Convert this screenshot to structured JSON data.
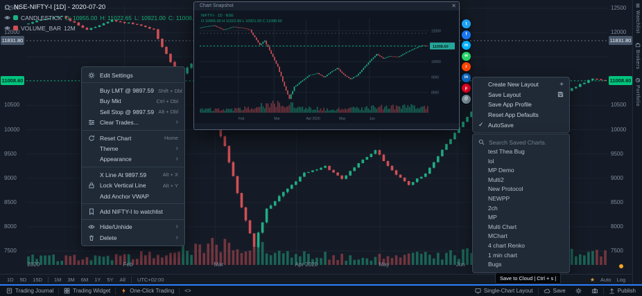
{
  "header": {
    "title": "NSE-NIFTY-I [1D] - 2020-07-20",
    "series_label": "CANDLESTICK",
    "o": "O: 10955.00",
    "h": "H: 11022.65",
    "l": "L: 10921.00",
    "c": "C: 11008.6",
    "volume_label": "VOLUME_BAR",
    "volume_value": "12M"
  },
  "price_axis": {
    "ticks": [
      12500,
      12000,
      10500,
      10000,
      9500,
      9000,
      8500,
      8000,
      7500
    ],
    "level_badge": "11831.80",
    "price_badge": "11008.60"
  },
  "x_axis": {
    "labels": [
      {
        "text": "2020",
        "pos": 0.004
      },
      {
        "text": "Feb",
        "pos": 0.169
      },
      {
        "text": "Mar",
        "pos": 0.325
      },
      {
        "text": "Apr 2020",
        "pos": 0.465
      },
      {
        "text": "May",
        "pos": 0.609
      },
      {
        "text": "Jun",
        "pos": 0.742
      }
    ]
  },
  "chart_data": {
    "type": "candlestick",
    "symbol": "NSE-NIFTY-I",
    "interval": "1D",
    "price_range": [
      7500,
      12500
    ],
    "last_price": 11008.6,
    "level_line": 11831.8,
    "n_candles": 139,
    "close_anchors": [
      [
        0,
        12200
      ],
      [
        8,
        12350
      ],
      [
        14,
        12050
      ],
      [
        20,
        12250
      ],
      [
        27,
        12150
      ],
      [
        30,
        12050
      ],
      [
        33,
        11550
      ],
      [
        36,
        11100
      ],
      [
        39,
        11350
      ],
      [
        43,
        10500
      ],
      [
        47,
        9650
      ],
      [
        51,
        8400
      ],
      [
        54,
        7610
      ],
      [
        57,
        8350
      ],
      [
        61,
        8700
      ],
      [
        66,
        9100
      ],
      [
        71,
        9250
      ],
      [
        75,
        8980
      ],
      [
        79,
        9300
      ],
      [
        83,
        9580
      ],
      [
        87,
        9150
      ],
      [
        91,
        8870
      ],
      [
        95,
        9100
      ],
      [
        99,
        9580
      ],
      [
        103,
        10050
      ],
      [
        107,
        10480
      ],
      [
        111,
        10200
      ],
      [
        115,
        10350
      ],
      [
        120,
        10300
      ],
      [
        125,
        10600
      ],
      [
        130,
        10850
      ],
      [
        135,
        11050
      ],
      [
        138,
        11008
      ]
    ]
  },
  "context_menu": {
    "items": [
      {
        "label": "Edit Settings",
        "shortcut": ""
      },
      {
        "label": "Buy LMT @ 9897.59",
        "shortcut": "Shift + Dbl"
      },
      {
        "label": "Buy Mkt",
        "shortcut": "Ctrl + Dbl"
      },
      {
        "label": "Sell Stop @ 9897.59",
        "shortcut": "Alt + Dbl"
      },
      {
        "label": "Clear Trades...",
        "shortcut": ""
      },
      {
        "label": "Reset Chart",
        "shortcut": "Home"
      },
      {
        "label": "Theme",
        "shortcut": ""
      },
      {
        "label": "Appearance",
        "shortcut": ""
      },
      {
        "label": "X Line At 9897.59",
        "shortcut": "Alt + X"
      },
      {
        "label": "Lock Vertical Line",
        "shortcut": "Alt + Y"
      },
      {
        "label": "Add Anchor VWAP",
        "shortcut": ""
      },
      {
        "label": "Add NIFTY-I to watchlist",
        "shortcut": ""
      },
      {
        "label": "Hide/Unhide",
        "shortcut": ""
      },
      {
        "label": "Delete",
        "shortcut": ""
      }
    ]
  },
  "layout_menu": {
    "items": [
      "Create New Layout",
      "Save Layout",
      "Save App Profile",
      "Reset App Defaults",
      "AutoSave"
    ]
  },
  "saved_charts": {
    "search_placeholder": "Search Saved Charts.",
    "items": [
      "test Thea Bug",
      "lol",
      "MP Demo",
      "Multi2",
      "New Protocol",
      "NEWPP",
      "2ch",
      "MP",
      "Multi Chart",
      "MChart",
      "4 chart Renko",
      "1 min chart",
      "Bugs"
    ]
  },
  "preview": {
    "title": "Chart Snapshot",
    "watermark_line1": "NIFTY-I · 1D · NSE",
    "watermark_line2": "O 10955.00  H 11022.65  L 10921.00  C 11008.60",
    "badge": "11008.60",
    "y_ticks": [
      12000,
      11000,
      10000,
      9000,
      8000
    ]
  },
  "social": [
    {
      "name": "twitter",
      "color": "#1da1f2",
      "glyph": "t"
    },
    {
      "name": "facebook",
      "color": "#1877f2",
      "glyph": "f"
    },
    {
      "name": "messenger",
      "color": "#00b2ff",
      "glyph": "m"
    },
    {
      "name": "whatsapp",
      "color": "#25d366",
      "glyph": "w"
    },
    {
      "name": "reddit",
      "color": "#ff4500",
      "glyph": "r"
    },
    {
      "name": "linkedin",
      "color": "#0a66c2",
      "glyph": "in"
    },
    {
      "name": "pinterest",
      "color": "#e60023",
      "glyph": "p"
    },
    {
      "name": "email",
      "color": "#78909c",
      "glyph": "@"
    }
  ],
  "timeframe_bar": {
    "ranges": [
      "1D",
      "5D",
      "15D",
      "1M",
      "3M",
      "6M",
      "1Y",
      "5Y",
      "All"
    ],
    "timezone": "UTC+02:00",
    "right_labels": [
      "Auto",
      "Log"
    ]
  },
  "bottom_toolbar": {
    "trading_journal": "Trading Journal",
    "trading_widget": "Trading Widget",
    "one_click": "One-Click Trading",
    "code": "<>",
    "single_chart": "Single-Chart Layout",
    "save": "Save",
    "publish": "Publish"
  },
  "tooltip": {
    "text": "Save to Cloud | Ctrl + s |"
  },
  "side_tabs": [
    "Watchlist",
    "Brokers",
    "Portfolio"
  ],
  "colors": {
    "up": "#1fae84",
    "down": "#cf4f55",
    "accent_green": "#00c57f",
    "accent_blue": "#2b7fff",
    "badge_gray": "#47566a",
    "orange": "#f5a623",
    "grid": "#1c2531"
  }
}
